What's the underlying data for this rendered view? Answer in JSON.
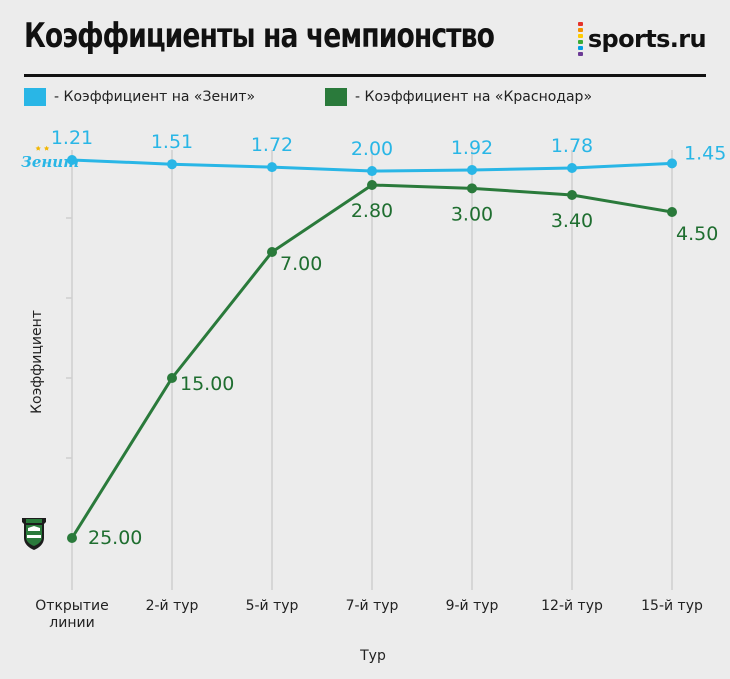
{
  "header": {
    "title": "Коэффициенты на чемпионство",
    "brand": "sports.ru",
    "brand_dot_colors": [
      "#e5332a",
      "#f39200",
      "#ffcc00",
      "#3aaa35",
      "#009fe3",
      "#6c3b96"
    ]
  },
  "chart_data": {
    "type": "line",
    "title": "Коэффициенты на чемпионство",
    "xlabel": "Тур",
    "ylabel": "Коэффициент",
    "categories": [
      "Открытие линии",
      "2-й тур",
      "5-й тур",
      "7-й тур",
      "9-й тур",
      "12-й тур",
      "15-й тур"
    ],
    "grid": true,
    "legend_position": "top",
    "series": [
      {
        "name": "Коэффициент на «Зенит»",
        "legend_label": "- Коэффициент на «Зенит»",
        "color": "#29b6e6",
        "label_color": "#29b6e6",
        "values": [
          1.21,
          1.51,
          1.72,
          2.0,
          1.92,
          1.78,
          1.45
        ],
        "labels": [
          "1.21",
          "1.51",
          "1.72",
          "2.00",
          "1.92",
          "1.78",
          "1.45"
        ],
        "logo_icon": "zenit-logo-icon",
        "logo_text": "Зенит"
      },
      {
        "name": "Коэффициент на «Краснодар»",
        "legend_label": "- Коэффициент на «Краснодар»",
        "color": "#2a7a3b",
        "label_color": "#1f6e30",
        "values": [
          25.0,
          15.0,
          7.0,
          2.8,
          3.0,
          3.4,
          4.5
        ],
        "labels": [
          "25.00",
          "15.00",
          "7.00",
          "2.80",
          "3.00",
          "3.40",
          "4.50"
        ],
        "logo_icon": "krasnodar-logo-icon"
      }
    ]
  }
}
